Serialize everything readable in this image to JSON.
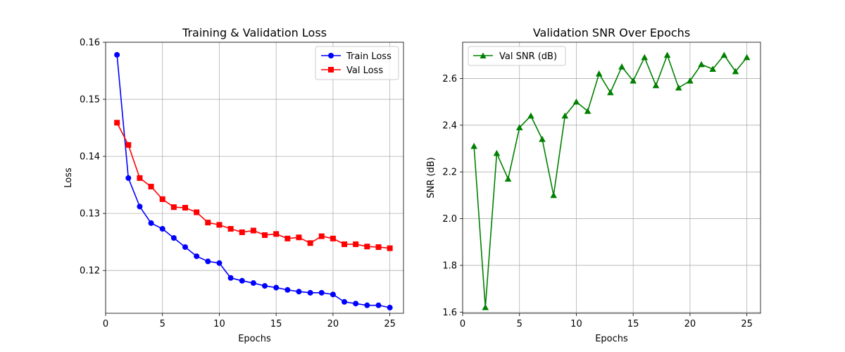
{
  "chart_data": [
    {
      "type": "line",
      "title": "Training & Validation Loss",
      "xlabel": "Epochs",
      "ylabel": "Loss",
      "xlim": [
        0,
        26.2
      ],
      "ylim": [
        0.1125,
        0.16
      ],
      "xticks": [
        0,
        5,
        10,
        15,
        20,
        25
      ],
      "yticks": [
        0.12,
        0.13,
        0.14,
        0.15,
        0.16
      ],
      "ytick_labels": [
        "0.12",
        "0.13",
        "0.14",
        "0.15",
        "0.16"
      ],
      "grid": true,
      "legend_position": "top-right",
      "x": [
        1,
        2,
        3,
        4,
        5,
        6,
        7,
        8,
        9,
        10,
        11,
        12,
        13,
        14,
        15,
        16,
        17,
        18,
        19,
        20,
        21,
        22,
        23,
        24,
        25
      ],
      "series": [
        {
          "name": "Train Loss",
          "color": "#0000ff",
          "marker": "circle",
          "values": [
            0.1578,
            0.1362,
            0.1312,
            0.1283,
            0.1273,
            0.1257,
            0.1241,
            0.1225,
            0.1216,
            0.1213,
            0.1187,
            0.1182,
            0.1178,
            0.1173,
            0.117,
            0.1166,
            0.1163,
            0.1161,
            0.1161,
            0.1158,
            0.1145,
            0.1142,
            0.1139,
            0.1139,
            0.1135
          ]
        },
        {
          "name": "Val Loss",
          "color": "#ff0000",
          "marker": "square",
          "values": [
            0.1459,
            0.142,
            0.1362,
            0.1347,
            0.1325,
            0.1311,
            0.131,
            0.1302,
            0.1284,
            0.128,
            0.1273,
            0.1267,
            0.127,
            0.1262,
            0.1264,
            0.1256,
            0.1258,
            0.1248,
            0.126,
            0.1256,
            0.1246,
            0.1246,
            0.1242,
            0.1241,
            0.1239
          ]
        }
      ]
    },
    {
      "type": "line",
      "title": "Validation SNR Over Epochs",
      "xlabel": "Epochs",
      "ylabel": "SNR (dB)",
      "xlim": [
        0,
        26.2
      ],
      "ylim": [
        1.595,
        2.755
      ],
      "xticks": [
        0,
        5,
        10,
        15,
        20,
        25
      ],
      "yticks": [
        1.6,
        1.8,
        2.0,
        2.2,
        2.4,
        2.6
      ],
      "ytick_labels": [
        "1.6",
        "1.8",
        "2.0",
        "2.2",
        "2.4",
        "2.6"
      ],
      "grid": true,
      "legend_position": "top-left",
      "x": [
        1,
        2,
        3,
        4,
        5,
        6,
        7,
        8,
        9,
        10,
        11,
        12,
        13,
        14,
        15,
        16,
        17,
        18,
        19,
        20,
        21,
        22,
        23,
        24,
        25
      ],
      "series": [
        {
          "name": "Val SNR (dB)",
          "color": "#008000",
          "marker": "triangle",
          "values": [
            2.31,
            1.62,
            2.28,
            2.17,
            2.39,
            2.44,
            2.34,
            2.1,
            2.44,
            2.5,
            2.46,
            2.62,
            2.54,
            2.65,
            2.59,
            2.69,
            2.57,
            2.7,
            2.56,
            2.59,
            2.66,
            2.64,
            2.7,
            2.63,
            2.69
          ]
        }
      ]
    }
  ]
}
